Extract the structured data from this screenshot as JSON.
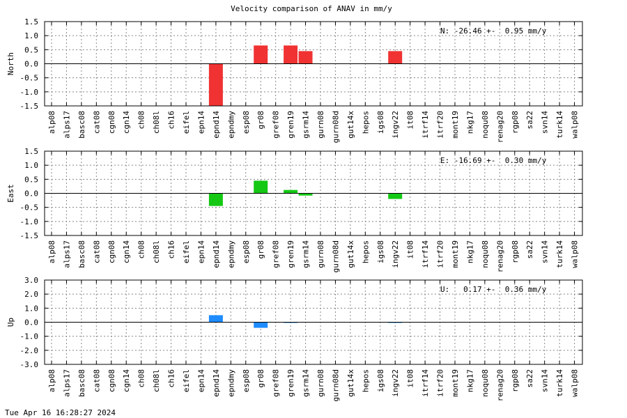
{
  "timestamp": "Tue Apr 16 16:28:27 2024",
  "chart_data": {
    "type": "bar",
    "title": "Velocity comparison of ANAV in mm/y",
    "grid": true,
    "categories": [
      "alp08",
      "alps17",
      "basc08",
      "cat08",
      "cgn08",
      "cgn14",
      "ch08",
      "ch08l",
      "ch16",
      "eifel",
      "epn14",
      "epnd14",
      "epndmy",
      "esp08",
      "gr08",
      "gref08",
      "gren19",
      "gsrm14",
      "gurn08",
      "gurn08d",
      "gut14x",
      "hepos",
      "igs08",
      "ingv22",
      "it08",
      "itrf14",
      "itrf20",
      "mont19",
      "nkg17",
      "noqu08",
      "renag20",
      "rgp08",
      "sa22",
      "svn14",
      "turk14",
      "walp08"
    ],
    "panels": [
      {
        "ylabel": "North",
        "ylim": [
          -1.5,
          1.5
        ],
        "yticks": [
          -1.5,
          -1.0,
          -0.5,
          0.0,
          0.5,
          1.0,
          1.5
        ],
        "color": "#f03232",
        "annotation": "N: -26.46 +-  0.95 mm/y",
        "values": [
          null,
          null,
          null,
          null,
          null,
          null,
          null,
          null,
          null,
          null,
          null,
          -1.5,
          null,
          null,
          0.65,
          null,
          0.65,
          0.45,
          null,
          null,
          null,
          null,
          null,
          0.45,
          null,
          null,
          null,
          null,
          null,
          null,
          null,
          null,
          null,
          null,
          null,
          null
        ]
      },
      {
        "ylabel": "East",
        "ylim": [
          -1.5,
          1.5
        ],
        "yticks": [
          -1.5,
          -1.0,
          -0.5,
          0.0,
          0.5,
          1.0,
          1.5
        ],
        "color": "#14c814",
        "annotation": "E: -16.69 +-  0.30 mm/y",
        "values": [
          null,
          null,
          null,
          null,
          null,
          null,
          null,
          null,
          null,
          null,
          null,
          -0.45,
          null,
          null,
          0.45,
          null,
          0.12,
          -0.08,
          null,
          null,
          null,
          null,
          null,
          -0.2,
          null,
          null,
          null,
          null,
          null,
          null,
          null,
          null,
          null,
          null,
          null,
          null
        ]
      },
      {
        "ylabel": "Up",
        "ylim": [
          -3.0,
          3.0
        ],
        "yticks": [
          -3.0,
          -2.0,
          -1.0,
          0.0,
          1.0,
          2.0,
          3.0
        ],
        "color": "#1e8cff",
        "annotation": "U:   0.17 +-  0.36 mm/y",
        "values": [
          null,
          null,
          null,
          null,
          null,
          null,
          null,
          null,
          null,
          null,
          null,
          0.5,
          null,
          null,
          -0.4,
          null,
          -0.05,
          null,
          null,
          null,
          null,
          null,
          null,
          -0.05,
          null,
          null,
          null,
          null,
          null,
          null,
          null,
          null,
          null,
          null,
          null,
          null
        ]
      }
    ]
  }
}
